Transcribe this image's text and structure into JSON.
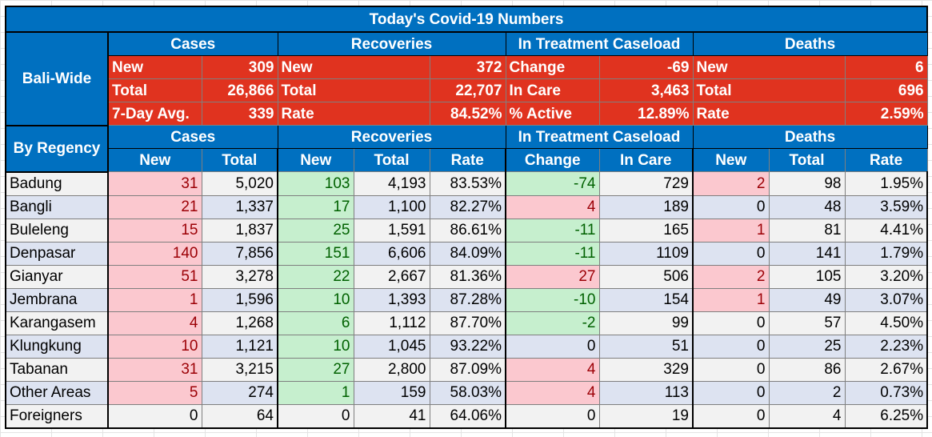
{
  "title": "Today's Covid-19 Numbers",
  "groups": {
    "cases": "Cases",
    "recoveries": "Recoveries",
    "treatment": "In Treatment Caseload",
    "deaths": "Deaths"
  },
  "bali_wide": {
    "label": "Bali-Wide",
    "rows": [
      [
        "New",
        "309",
        "New",
        "372",
        "Change",
        "-69",
        "New",
        "6"
      ],
      [
        "Total",
        "26,866",
        "Total",
        "22,707",
        "In Care",
        "3,463",
        "Total",
        "696"
      ],
      [
        "7-Day Avg.",
        "339",
        "Rate",
        "84.52%",
        "% Active",
        "12.89%",
        "Rate",
        "2.59%"
      ]
    ]
  },
  "by_regency": {
    "label": "By Regency",
    "columns": [
      "New",
      "Total",
      "New",
      "Total",
      "Rate",
      "Change",
      "In Care",
      "New",
      "Total",
      "Rate"
    ],
    "rows": [
      {
        "name": "Badung",
        "cells": [
          "31",
          "5,020",
          "103",
          "4,193",
          "83.53%",
          "-74",
          "729",
          "2",
          "98",
          "1.95%"
        ]
      },
      {
        "name": "Bangli",
        "cells": [
          "21",
          "1,337",
          "17",
          "1,100",
          "82.27%",
          "4",
          "189",
          "0",
          "48",
          "3.59%"
        ]
      },
      {
        "name": "Buleleng",
        "cells": [
          "15",
          "1,837",
          "25",
          "1,591",
          "86.61%",
          "-11",
          "165",
          "1",
          "81",
          "4.41%"
        ]
      },
      {
        "name": "Denpasar",
        "cells": [
          "140",
          "7,856",
          "151",
          "6,606",
          "84.09%",
          "-11",
          "1109",
          "0",
          "141",
          "1.79%"
        ]
      },
      {
        "name": "Gianyar",
        "cells": [
          "51",
          "3,278",
          "22",
          "2,667",
          "81.36%",
          "27",
          "506",
          "2",
          "105",
          "3.20%"
        ]
      },
      {
        "name": "Jembrana",
        "cells": [
          "1",
          "1,596",
          "10",
          "1,393",
          "87.28%",
          "-10",
          "154",
          "1",
          "49",
          "3.07%"
        ]
      },
      {
        "name": "Karangasem",
        "cells": [
          "4",
          "1,268",
          "6",
          "1,112",
          "87.70%",
          "-2",
          "99",
          "0",
          "57",
          "4.50%"
        ]
      },
      {
        "name": "Klungkung",
        "cells": [
          "10",
          "1,121",
          "10",
          "1,045",
          "93.22%",
          "0",
          "51",
          "0",
          "25",
          "2.23%"
        ]
      },
      {
        "name": "Tabanan",
        "cells": [
          "31",
          "3,215",
          "27",
          "2,800",
          "87.09%",
          "4",
          "329",
          "0",
          "86",
          "2.67%"
        ]
      },
      {
        "name": "Other Areas",
        "cells": [
          "5",
          "274",
          "1",
          "159",
          "58.03%",
          "4",
          "113",
          "0",
          "2",
          "0.73%"
        ]
      },
      {
        "name": "Foreigners",
        "cells": [
          "0",
          "64",
          "0",
          "41",
          "64.06%",
          "0",
          "19",
          "0",
          "4",
          "6.25%"
        ]
      }
    ]
  }
}
